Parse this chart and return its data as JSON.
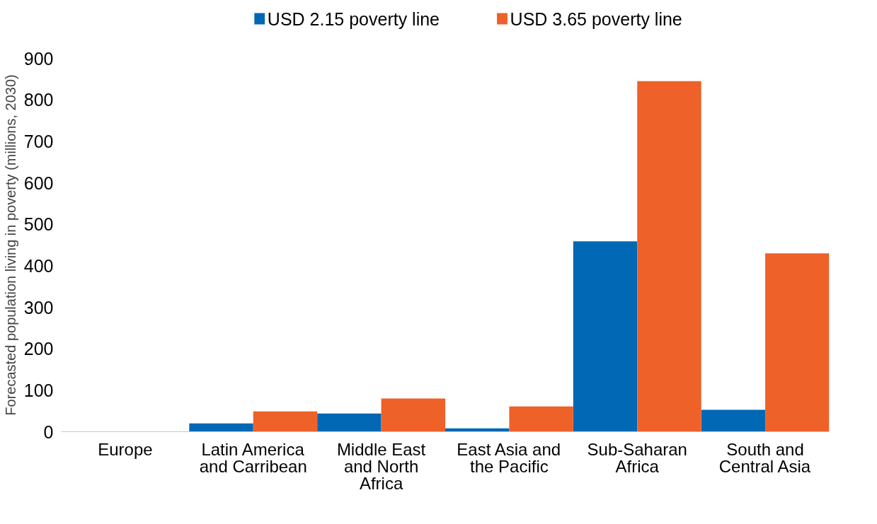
{
  "chart_data": {
    "type": "bar",
    "ylabel": "Forecasted population living in poverty (millions, 2030)",
    "categories": [
      "Europe",
      "Latin America and Carribean",
      "Middle East and North Africa",
      "East Asia and the Pacific",
      "Sub-Saharan Africa",
      "South and Central Asia"
    ],
    "series": [
      {
        "name": "USD 2.15 poverty line",
        "color": "#0068b4",
        "values": [
          0,
          20,
          44,
          8,
          459,
          53
        ]
      },
      {
        "name": "USD 3.65 poverty line",
        "color": "#ee6128",
        "values": [
          0,
          49,
          80,
          61,
          845,
          430
        ]
      }
    ],
    "ylim": [
      0,
      900
    ],
    "yticks": [
      0,
      100,
      200,
      300,
      400,
      500,
      600,
      700,
      800,
      900
    ],
    "grid": false,
    "legend": "top"
  }
}
